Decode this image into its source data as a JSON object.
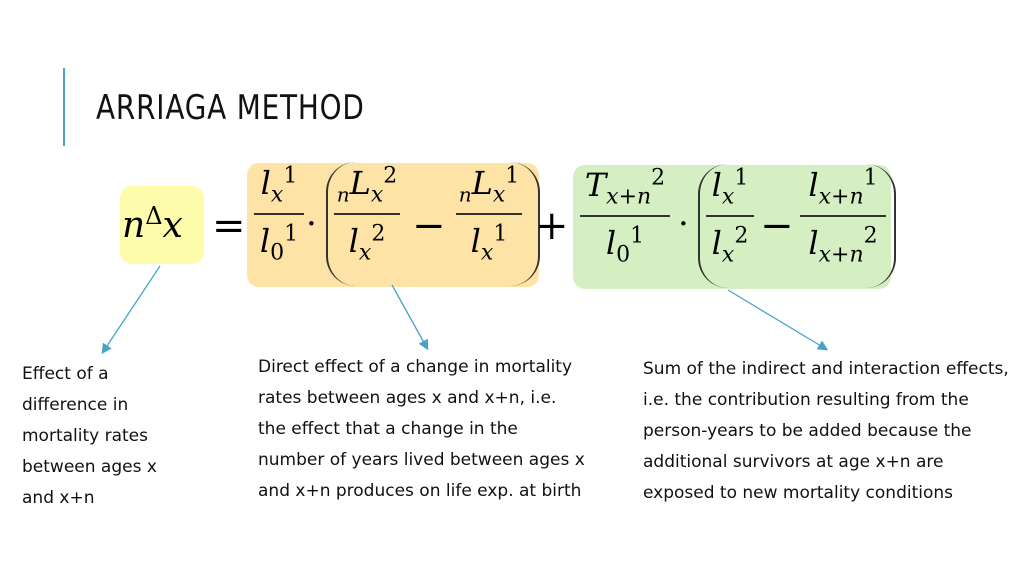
{
  "slide": {
    "title": "ARRIAGA METHOD"
  },
  "formula": {
    "lhs": "nΔx",
    "equals": "=",
    "plus": "+",
    "minus": "−",
    "dot": "·",
    "direct_term": {
      "frac1": {
        "num": "l x 1",
        "den": "l 0 1"
      },
      "frac2": {
        "num": "n L x 2",
        "den": "l x 2"
      },
      "frac3": {
        "num": "n L x 1",
        "den": "l x 1"
      }
    },
    "indirect_term": {
      "frac1": {
        "num": "T x+n 2",
        "den": "l 0 1"
      },
      "frac2": {
        "num": "l x 1",
        "den": "l x 2"
      },
      "frac3": {
        "num": "l x+n 1",
        "den": "l x+n 2"
      }
    }
  },
  "annotations": {
    "lhs_note": "Effect of a difference in mortality rates between ages x and x+n",
    "direct_note": "Direct effect of a change in mortality rates between ages x and x+n, i.e. the effect that a change in the number of years lived between ages x and x+n produces on life exp. at birth",
    "indirect_note": "Sum of the indirect and interaction effects, i.e. the contribution resulting from the person-years to be added because the additional survivors at age x+n are exposed to new mortality conditions"
  },
  "colors": {
    "accent": "#4aa3c6",
    "lhs_highlight": "#fcfcab",
    "direct_highlight": "#fde3a5",
    "indirect_highlight": "#d5efc2",
    "arrow": "#4aa3c6"
  }
}
